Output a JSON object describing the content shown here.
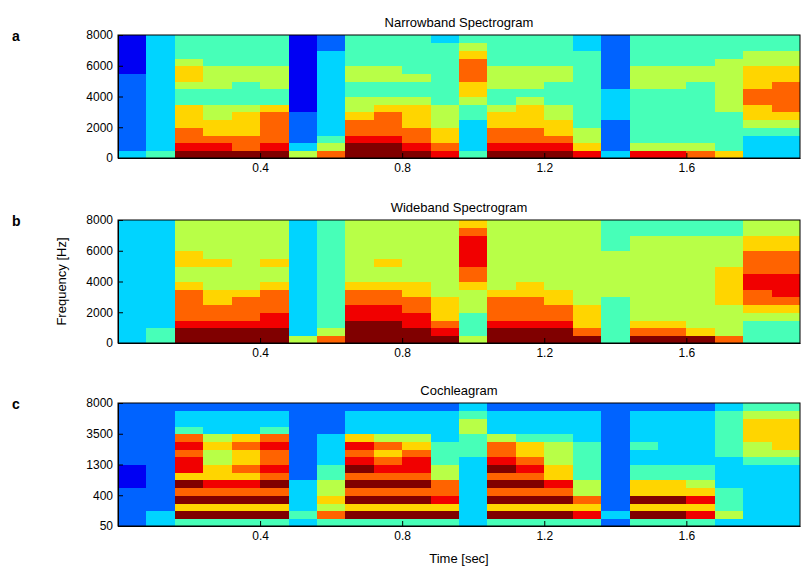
{
  "chart_data": [
    {
      "type": "heatmap",
      "panel": "a",
      "title": "Narrowband Spectrogram",
      "xlim": [
        0,
        1.92
      ],
      "xticks": [
        0.4,
        0.8,
        1.2,
        1.6
      ],
      "ylim": [
        0,
        8000
      ],
      "yticks": [
        0,
        2000,
        4000,
        6000,
        8000
      ],
      "zlim": [
        0,
        9
      ],
      "x_edges": [
        0,
        0.08,
        0.16,
        0.24,
        0.32,
        0.4,
        0.48,
        0.56,
        0.64,
        0.72,
        0.8,
        0.88,
        0.96,
        1.04,
        1.12,
        1.2,
        1.28,
        1.36,
        1.44,
        1.52,
        1.6,
        1.68,
        1.76,
        1.84,
        1.92
      ],
      "y_edges": [
        0,
        500,
        1000,
        1500,
        2000,
        2500,
        3000,
        3500,
        4000,
        4500,
        5000,
        5500,
        6000,
        6500,
        7000,
        7500,
        8000
      ],
      "cells": [
        [
          3,
          2,
          2,
          2,
          2,
          2,
          2,
          2,
          2,
          2,
          2,
          1,
          1,
          1,
          1,
          1
        ],
        [
          4,
          3,
          3,
          3,
          3,
          3,
          3,
          3,
          3,
          3,
          3,
          3,
          3,
          3,
          3,
          3
        ],
        [
          9,
          8,
          7,
          7,
          6,
          6,
          6,
          4,
          4,
          5,
          6,
          6,
          5,
          4,
          4,
          4
        ],
        [
          9,
          8,
          7,
          6,
          6,
          5,
          5,
          4,
          4,
          5,
          5,
          5,
          4,
          4,
          4,
          4
        ],
        [
          9,
          7,
          7,
          6,
          6,
          6,
          5,
          4,
          4,
          4,
          5,
          5,
          4,
          4,
          4,
          4
        ],
        [
          9,
          8,
          7,
          7,
          7,
          7,
          6,
          4,
          4,
          5,
          5,
          5,
          4,
          4,
          4,
          4
        ],
        [
          5,
          3,
          2,
          2,
          2,
          2,
          1,
          1,
          1,
          1,
          1,
          1,
          1,
          1,
          1,
          1
        ],
        [
          7,
          5,
          4,
          3,
          3,
          3,
          3,
          3,
          3,
          3,
          3,
          3,
          3,
          3,
          2,
          2
        ],
        [
          9,
          9,
          8,
          7,
          7,
          6,
          5,
          5,
          4,
          4,
          5,
          5,
          4,
          4,
          4,
          4
        ],
        [
          9,
          9,
          8,
          7,
          7,
          7,
          6,
          5,
          4,
          4,
          5,
          5,
          4,
          4,
          4,
          4
        ],
        [
          9,
          8,
          7,
          7,
          6,
          6,
          6,
          5,
          4,
          4,
          5,
          4,
          4,
          4,
          4,
          4
        ],
        [
          8,
          7,
          6,
          6,
          5,
          5,
          5,
          4,
          4,
          4,
          4,
          4,
          4,
          4,
          4,
          3
        ],
        [
          4,
          3,
          3,
          3,
          3,
          4,
          4,
          5,
          6,
          6,
          7,
          7,
          7,
          6,
          5,
          4
        ],
        [
          9,
          8,
          7,
          7,
          6,
          6,
          5,
          4,
          4,
          5,
          5,
          5,
          4,
          4,
          4,
          4
        ],
        [
          9,
          8,
          7,
          7,
          6,
          6,
          6,
          5,
          4,
          5,
          5,
          5,
          4,
          4,
          4,
          4
        ],
        [
          9,
          8,
          7,
          6,
          6,
          5,
          5,
          4,
          4,
          4,
          5,
          5,
          4,
          4,
          4,
          4
        ],
        [
          8,
          6,
          5,
          5,
          4,
          4,
          4,
          4,
          4,
          4,
          4,
          4,
          4,
          4,
          3,
          3
        ],
        [
          3,
          2,
          2,
          2,
          2,
          3,
          3,
          3,
          3,
          2,
          2,
          2,
          2,
          2,
          2,
          2
        ],
        [
          8,
          5,
          4,
          4,
          4,
          4,
          4,
          4,
          4,
          5,
          5,
          5,
          4,
          4,
          4,
          4
        ],
        [
          8,
          5,
          4,
          4,
          4,
          4,
          4,
          4,
          4,
          5,
          5,
          5,
          4,
          4,
          4,
          4
        ],
        [
          7,
          5,
          4,
          4,
          4,
          4,
          4,
          4,
          4,
          4,
          5,
          5,
          4,
          4,
          4,
          4
        ],
        [
          6,
          4,
          4,
          4,
          4,
          4,
          5,
          5,
          5,
          5,
          5,
          5,
          5,
          4,
          4,
          4
        ],
        [
          3,
          3,
          3,
          4,
          5,
          6,
          6,
          7,
          7,
          6,
          6,
          6,
          5,
          5,
          4,
          4
        ],
        [
          3,
          3,
          3,
          4,
          5,
          6,
          7,
          7,
          7,
          7,
          6,
          6,
          5,
          5,
          4,
          4
        ]
      ]
    },
    {
      "type": "heatmap",
      "panel": "b",
      "title": "Wideband Spectrogram",
      "y_label": "Frequency [Hz]",
      "xlim": [
        0,
        1.92
      ],
      "xticks": [
        0.4,
        0.8,
        1.2,
        1.6
      ],
      "ylim": [
        0,
        8000
      ],
      "yticks": [
        0,
        2000,
        4000,
        6000,
        8000
      ],
      "zlim": [
        0,
        9
      ],
      "x_edges": [
        0,
        0.08,
        0.16,
        0.24,
        0.32,
        0.4,
        0.48,
        0.56,
        0.64,
        0.72,
        0.8,
        0.88,
        0.96,
        1.04,
        1.12,
        1.2,
        1.28,
        1.36,
        1.44,
        1.52,
        1.6,
        1.68,
        1.76,
        1.84,
        1.92
      ],
      "y_edges": [
        0,
        500,
        1000,
        1500,
        2000,
        2500,
        3000,
        3500,
        4000,
        4500,
        5000,
        5500,
        6000,
        6500,
        7000,
        7500,
        8000
      ],
      "cells": [
        [
          3,
          3,
          3,
          3,
          3,
          3,
          3,
          3,
          3,
          3,
          3,
          3,
          3,
          3,
          3,
          3
        ],
        [
          4,
          4,
          3,
          3,
          3,
          3,
          3,
          3,
          3,
          3,
          3,
          3,
          3,
          3,
          3,
          3
        ],
        [
          9,
          9,
          8,
          7,
          7,
          7,
          7,
          6,
          5,
          5,
          6,
          6,
          5,
          5,
          5,
          5
        ],
        [
          9,
          9,
          8,
          7,
          7,
          6,
          6,
          5,
          5,
          5,
          6,
          5,
          5,
          5,
          5,
          5
        ],
        [
          9,
          9,
          8,
          7,
          7,
          7,
          6,
          5,
          5,
          5,
          5,
          5,
          5,
          5,
          5,
          5
        ],
        [
          9,
          9,
          8,
          8,
          7,
          7,
          7,
          6,
          5,
          5,
          6,
          5,
          5,
          5,
          5,
          5
        ],
        [
          5,
          3,
          3,
          3,
          3,
          3,
          3,
          3,
          3,
          3,
          3,
          3,
          3,
          3,
          3,
          3
        ],
        [
          7,
          5,
          4,
          4,
          4,
          4,
          4,
          4,
          4,
          4,
          4,
          4,
          4,
          4,
          4,
          4
        ],
        [
          9,
          9,
          9,
          8,
          8,
          7,
          7,
          6,
          5,
          5,
          5,
          5,
          5,
          5,
          5,
          5
        ],
        [
          9,
          9,
          9,
          8,
          8,
          7,
          7,
          6,
          5,
          5,
          6,
          5,
          5,
          5,
          5,
          5
        ],
        [
          9,
          9,
          8,
          8,
          7,
          7,
          6,
          6,
          5,
          5,
          5,
          5,
          5,
          5,
          5,
          5
        ],
        [
          9,
          8,
          7,
          6,
          6,
          6,
          5,
          5,
          5,
          5,
          5,
          5,
          5,
          5,
          5,
          5
        ],
        [
          5,
          4,
          4,
          4,
          5,
          5,
          5,
          6,
          7,
          7,
          8,
          8,
          8,
          8,
          7,
          6
        ],
        [
          9,
          9,
          8,
          7,
          7,
          7,
          6,
          5,
          5,
          5,
          5,
          5,
          5,
          5,
          5,
          5
        ],
        [
          9,
          9,
          8,
          7,
          7,
          7,
          6,
          6,
          5,
          5,
          5,
          5,
          5,
          5,
          5,
          5
        ],
        [
          9,
          9,
          8,
          7,
          7,
          6,
          6,
          5,
          5,
          5,
          5,
          5,
          5,
          5,
          5,
          5
        ],
        [
          9,
          7,
          6,
          6,
          6,
          5,
          5,
          5,
          5,
          5,
          5,
          5,
          5,
          5,
          5,
          5
        ],
        [
          4,
          4,
          4,
          4,
          4,
          4,
          5,
          5,
          5,
          5,
          5,
          5,
          4,
          4,
          4,
          4
        ],
        [
          9,
          7,
          6,
          5,
          5,
          5,
          5,
          5,
          5,
          5,
          5,
          5,
          5,
          5,
          4,
          4
        ],
        [
          9,
          7,
          6,
          5,
          5,
          5,
          5,
          5,
          5,
          5,
          5,
          5,
          5,
          5,
          4,
          4
        ],
        [
          9,
          6,
          5,
          5,
          5,
          5,
          5,
          5,
          5,
          5,
          5,
          5,
          5,
          5,
          4,
          4
        ],
        [
          7,
          5,
          5,
          5,
          5,
          6,
          6,
          6,
          6,
          6,
          5,
          5,
          5,
          5,
          4,
          4
        ],
        [
          4,
          4,
          4,
          5,
          6,
          7,
          7,
          8,
          8,
          7,
          7,
          7,
          6,
          6,
          5,
          5
        ],
        [
          4,
          4,
          4,
          5,
          6,
          7,
          8,
          8,
          8,
          7,
          7,
          7,
          6,
          6,
          5,
          5
        ]
      ]
    },
    {
      "type": "heatmap",
      "panel": "c",
      "title": "Cochleagram",
      "x_label": "Time [sec]",
      "xlim": [
        0,
        1.92
      ],
      "xticks": [
        0.4,
        0.8,
        1.2,
        1.6
      ],
      "ylim": [
        50,
        8000
      ],
      "yticks": [
        50,
        400,
        1300,
        3500,
        8000
      ],
      "zlim": [
        0,
        9
      ],
      "x_edges": [
        0,
        0.08,
        0.16,
        0.24,
        0.32,
        0.4,
        0.48,
        0.56,
        0.64,
        0.72,
        0.8,
        0.88,
        0.96,
        1.04,
        1.12,
        1.2,
        1.28,
        1.36,
        1.44,
        1.52,
        1.6,
        1.68,
        1.76,
        1.84,
        1.92
      ],
      "y_edges": [
        50,
        137.5,
        225,
        312.5,
        400,
        625,
        850,
        1075,
        1300,
        1850,
        2400,
        2950,
        3500,
        4625,
        5750,
        6875,
        8000
      ],
      "cells": [
        [
          2,
          2,
          2,
          2,
          2,
          1,
          1,
          1,
          2,
          2,
          2,
          2,
          2,
          2,
          2,
          2
        ],
        [
          3,
          3,
          2,
          2,
          2,
          2,
          2,
          2,
          2,
          2,
          2,
          2,
          2,
          2,
          2,
          2
        ],
        [
          4,
          9,
          6,
          9,
          7,
          9,
          6,
          8,
          8,
          7,
          8,
          7,
          4,
          3,
          3,
          2
        ],
        [
          4,
          9,
          6,
          9,
          7,
          8,
          6,
          6,
          5,
          5,
          6,
          5,
          3,
          3,
          3,
          2
        ],
        [
          4,
          9,
          6,
          9,
          7,
          8,
          6,
          7,
          6,
          6,
          7,
          6,
          3,
          3,
          3,
          2
        ],
        [
          4,
          9,
          6,
          9,
          7,
          9,
          7,
          8,
          7,
          7,
          8,
          7,
          4,
          3,
          3,
          2
        ],
        [
          3,
          4,
          3,
          3,
          3,
          3,
          2,
          2,
          2,
          2,
          2,
          2,
          2,
          2,
          2,
          2
        ],
        [
          4,
          7,
          5,
          6,
          5,
          5,
          4,
          4,
          3,
          3,
          3,
          3,
          2,
          2,
          2,
          2
        ],
        [
          4,
          9,
          6,
          9,
          7,
          9,
          7,
          9,
          8,
          7,
          8,
          6,
          3,
          3,
          3,
          2
        ],
        [
          4,
          9,
          6,
          9,
          7,
          9,
          7,
          8,
          7,
          6,
          7,
          5,
          3,
          3,
          3,
          2
        ],
        [
          4,
          9,
          6,
          9,
          7,
          9,
          7,
          8,
          8,
          7,
          6,
          5,
          3,
          3,
          3,
          2
        ],
        [
          4,
          9,
          6,
          8,
          7,
          7,
          5,
          5,
          4,
          4,
          4,
          3,
          3,
          3,
          3,
          2
        ],
        [
          3,
          3,
          3,
          3,
          3,
          3,
          3,
          3,
          3,
          4,
          4,
          4,
          5,
          5,
          4,
          3
        ],
        [
          4,
          9,
          6,
          9,
          7,
          9,
          7,
          9,
          8,
          7,
          7,
          5,
          3,
          3,
          3,
          2
        ],
        [
          4,
          9,
          6,
          9,
          7,
          9,
          7,
          8,
          7,
          6,
          6,
          4,
          3,
          3,
          3,
          2
        ],
        [
          4,
          9,
          6,
          9,
          7,
          8,
          6,
          6,
          5,
          5,
          5,
          4,
          3,
          3,
          3,
          2
        ],
        [
          4,
          8,
          6,
          7,
          5,
          5,
          4,
          4,
          4,
          4,
          4,
          3,
          3,
          3,
          3,
          2
        ],
        [
          2,
          3,
          2,
          2,
          2,
          2,
          2,
          2,
          2,
          2,
          2,
          2,
          2,
          2,
          2,
          2
        ],
        [
          4,
          9,
          6,
          9,
          6,
          6,
          4,
          4,
          3,
          3,
          4,
          3,
          3,
          3,
          3,
          2
        ],
        [
          4,
          9,
          6,
          9,
          6,
          6,
          4,
          4,
          3,
          3,
          3,
          3,
          3,
          3,
          3,
          2
        ],
        [
          4,
          8,
          6,
          8,
          6,
          5,
          4,
          4,
          3,
          3,
          3,
          3,
          3,
          3,
          3,
          2
        ],
        [
          3,
          5,
          4,
          4,
          4,
          3,
          3,
          3,
          3,
          4,
          4,
          4,
          4,
          4,
          4,
          3
        ],
        [
          3,
          3,
          3,
          3,
          3,
          3,
          3,
          3,
          4,
          5,
          5,
          6,
          6,
          6,
          5,
          4
        ],
        [
          3,
          3,
          3,
          3,
          3,
          3,
          3,
          3,
          4,
          5,
          6,
          6,
          6,
          6,
          5,
          4
        ]
      ]
    }
  ]
}
